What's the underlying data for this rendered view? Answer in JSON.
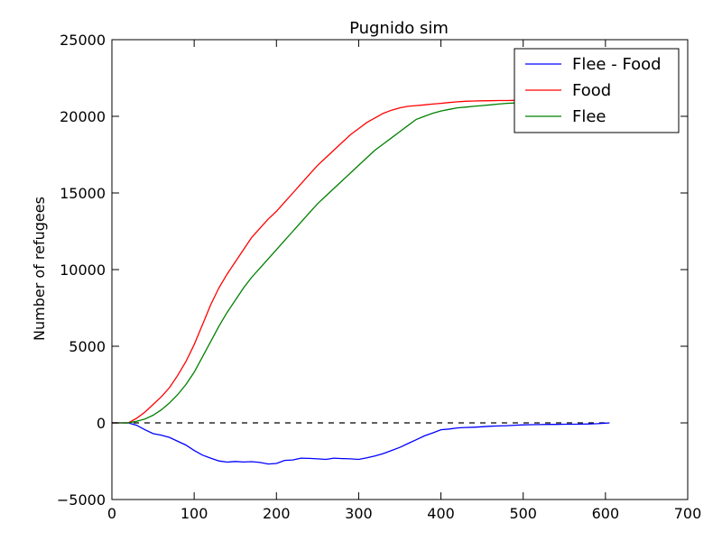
{
  "chart_data": {
    "type": "line",
    "title": "Pugnido sim",
    "xlabel": "",
    "ylabel": "Number of refugees",
    "xlim": [
      0,
      700
    ],
    "ylim": [
      -5000,
      25000
    ],
    "xticks": [
      0,
      100,
      200,
      300,
      400,
      500,
      600,
      700
    ],
    "yticks": [
      -5000,
      0,
      5000,
      10000,
      15000,
      20000,
      25000
    ],
    "xtick_labels": [
      "0",
      "100",
      "200",
      "300",
      "400",
      "500",
      "600",
      "700"
    ],
    "ytick_labels": [
      "−5000",
      "0",
      "5000",
      "10000",
      "15000",
      "20000",
      "25000"
    ],
    "grid": false,
    "legend_position": "top-right",
    "reference_line": {
      "y": 0,
      "style": "dashed",
      "color": "#000000",
      "x": [
        0,
        600
      ]
    },
    "series": [
      {
        "name": "Flee - Food",
        "color": "#0000ff",
        "x": [
          0,
          20,
          30,
          40,
          50,
          60,
          70,
          80,
          90,
          100,
          110,
          120,
          130,
          140,
          150,
          160,
          170,
          180,
          190,
          200,
          210,
          220,
          230,
          240,
          250,
          260,
          270,
          280,
          290,
          300,
          310,
          320,
          330,
          340,
          350,
          360,
          370,
          380,
          390,
          400,
          410,
          420,
          430,
          440,
          450,
          460,
          470,
          480,
          490,
          500,
          510,
          520,
          530,
          540,
          550,
          560,
          570,
          580,
          590,
          600,
          605
        ],
        "y": [
          0,
          0,
          -150,
          -450,
          -700,
          -800,
          -950,
          -1200,
          -1450,
          -1800,
          -2100,
          -2300,
          -2480,
          -2560,
          -2520,
          -2550,
          -2530,
          -2580,
          -2680,
          -2650,
          -2450,
          -2420,
          -2300,
          -2320,
          -2350,
          -2380,
          -2300,
          -2330,
          -2350,
          -2380,
          -2280,
          -2150,
          -2000,
          -1800,
          -1600,
          -1350,
          -1100,
          -850,
          -650,
          -450,
          -400,
          -330,
          -300,
          -280,
          -250,
          -220,
          -200,
          -180,
          -150,
          -130,
          -120,
          -110,
          -100,
          -100,
          -90,
          -90,
          -80,
          -70,
          -50,
          -20,
          0
        ]
      },
      {
        "name": "Food",
        "color": "#ff0000",
        "x": [
          0,
          20,
          30,
          40,
          50,
          60,
          70,
          80,
          90,
          100,
          110,
          120,
          130,
          140,
          150,
          160,
          170,
          180,
          190,
          200,
          210,
          220,
          230,
          240,
          250,
          260,
          270,
          280,
          290,
          300,
          310,
          320,
          330,
          340,
          350,
          360,
          370,
          380,
          390,
          400,
          410,
          420,
          430,
          440,
          450,
          460,
          470,
          480,
          490,
          500
        ],
        "y": [
          0,
          0,
          300,
          700,
          1200,
          1700,
          2300,
          3100,
          4000,
          5100,
          6400,
          7700,
          8800,
          9700,
          10500,
          11300,
          12100,
          12700,
          13300,
          13800,
          14400,
          15000,
          15600,
          16200,
          16800,
          17300,
          17800,
          18300,
          18800,
          19200,
          19600,
          19900,
          20200,
          20400,
          20550,
          20650,
          20700,
          20750,
          20800,
          20850,
          20900,
          20950,
          20980,
          21000,
          21010,
          21020,
          21030,
          21030,
          21040,
          21050
        ]
      },
      {
        "name": "Flee",
        "color": "#008000",
        "x": [
          0,
          20,
          30,
          40,
          50,
          60,
          70,
          80,
          90,
          100,
          110,
          120,
          130,
          140,
          150,
          160,
          170,
          180,
          190,
          200,
          210,
          220,
          230,
          240,
          250,
          260,
          270,
          280,
          290,
          300,
          310,
          320,
          330,
          340,
          350,
          360,
          370,
          380,
          390,
          400,
          410,
          420,
          430,
          440,
          450,
          460,
          470,
          480,
          490,
          500
        ],
        "y": [
          0,
          0,
          100,
          250,
          500,
          850,
          1300,
          1850,
          2500,
          3300,
          4300,
          5300,
          6300,
          7200,
          8000,
          8800,
          9500,
          10100,
          10700,
          11300,
          11900,
          12500,
          13100,
          13700,
          14300,
          14800,
          15300,
          15800,
          16300,
          16800,
          17300,
          17800,
          18200,
          18600,
          19000,
          19400,
          19800,
          20000,
          20200,
          20350,
          20450,
          20550,
          20600,
          20650,
          20700,
          20750,
          20800,
          20850,
          20870,
          20900
        ]
      }
    ]
  }
}
